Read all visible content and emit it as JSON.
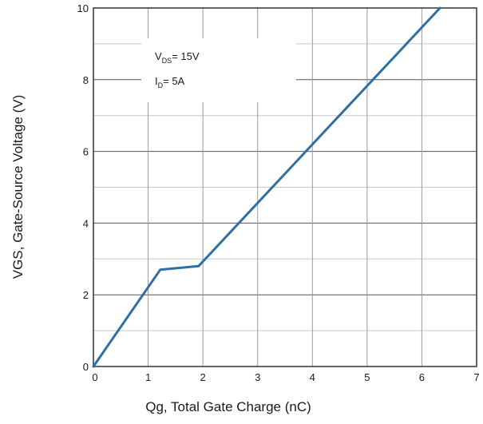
{
  "chart_data": {
    "type": "line",
    "xlabel": "Qg, Total Gate Charge (nC)",
    "ylabel": "VGS, Gate-Source Voltage (V)",
    "xlim": [
      0,
      7
    ],
    "ylim": [
      0,
      10
    ],
    "x_ticks": [
      "0",
      "1",
      "2",
      "3",
      "4",
      "5",
      "6",
      "7"
    ],
    "y_ticks": [
      "0",
      "2",
      "4",
      "6",
      "8",
      "10"
    ],
    "grid": true,
    "minor_grid_y": true,
    "series": [
      {
        "color": "#2f6fa3",
        "points": [
          {
            "x": 0,
            "y": 0
          },
          {
            "x": 1.22,
            "y": 2.7
          },
          {
            "x": 1.92,
            "y": 2.8
          },
          {
            "x": 6.33,
            "y": 10
          }
        ]
      }
    ],
    "annotations": [
      {
        "main": "V",
        "sub": "DS",
        "rest": "= 15V"
      },
      {
        "main": "I",
        "sub": "D",
        "rest": "= 5A"
      }
    ]
  }
}
